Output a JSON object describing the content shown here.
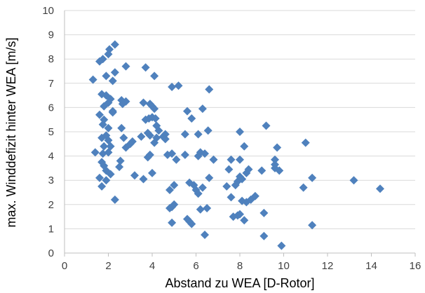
{
  "chart_data": {
    "type": "scatter",
    "title": "",
    "xlabel": "Abstand zu WEA [D-Rotor]",
    "ylabel": "max. Winddefizit hinter WEA [m/s]",
    "xlim": [
      0,
      16
    ],
    "ylim": [
      0,
      10
    ],
    "xticks": [
      "0",
      "2",
      "4",
      "6",
      "8",
      "10",
      "12",
      "14",
      "16"
    ],
    "yticks": [
      "0",
      "1",
      "2",
      "3",
      "4",
      "5",
      "6",
      "7",
      "8",
      "9",
      "10"
    ],
    "grid": "horizontal",
    "legend": "none",
    "marker": "diamond",
    "marker_color": "#4f81bd",
    "points": [
      [
        1.3,
        7.15
      ],
      [
        1.6,
        7.9
      ],
      [
        1.75,
        8.0
      ],
      [
        2.0,
        8.2
      ],
      [
        2.05,
        8.4
      ],
      [
        2.3,
        8.6
      ],
      [
        1.9,
        7.3
      ],
      [
        2.2,
        7.1
      ],
      [
        2.3,
        7.45
      ],
      [
        2.8,
        7.7
      ],
      [
        3.7,
        7.65
      ],
      [
        4.1,
        7.3
      ],
      [
        1.7,
        6.55
      ],
      [
        1.9,
        6.5
      ],
      [
        2.0,
        6.2
      ],
      [
        2.1,
        6.35
      ],
      [
        1.8,
        6.05
      ],
      [
        2.2,
        5.85
      ],
      [
        2.6,
        6.3
      ],
      [
        2.8,
        6.25
      ],
      [
        2.65,
        6.15
      ],
      [
        3.6,
        6.2
      ],
      [
        3.9,
        6.15
      ],
      [
        4.0,
        6.05
      ],
      [
        4.1,
        5.95
      ],
      [
        4.9,
        6.85
      ],
      [
        5.2,
        6.9
      ],
      [
        6.6,
        6.75
      ],
      [
        5.6,
        5.85
      ],
      [
        6.3,
        5.95
      ],
      [
        1.6,
        5.7
      ],
      [
        1.8,
        5.5
      ],
      [
        1.75,
        5.3
      ],
      [
        2.0,
        5.15
      ],
      [
        1.9,
        4.85
      ],
      [
        2.0,
        4.65
      ],
      [
        2.6,
        5.15
      ],
      [
        2.2,
        5.8
      ],
      [
        3.7,
        5.5
      ],
      [
        3.85,
        5.55
      ],
      [
        4.0,
        5.6
      ],
      [
        4.15,
        5.55
      ],
      [
        4.2,
        5.25
      ],
      [
        4.3,
        5.05
      ],
      [
        3.9,
        4.85
      ],
      [
        5.5,
        4.9
      ],
      [
        5.8,
        5.55
      ],
      [
        6.1,
        4.9
      ],
      [
        6.55,
        5.05
      ],
      [
        8.0,
        5.0
      ],
      [
        9.2,
        5.25
      ],
      [
        1.7,
        4.75
      ],
      [
        1.8,
        4.4
      ],
      [
        2.0,
        4.15
      ],
      [
        2.1,
        4.4
      ],
      [
        1.4,
        4.15
      ],
      [
        1.75,
        4.1
      ],
      [
        2.7,
        4.75
      ],
      [
        2.8,
        4.35
      ],
      [
        3.0,
        4.5
      ],
      [
        3.1,
        4.6
      ],
      [
        3.5,
        4.8
      ],
      [
        3.8,
        4.95
      ],
      [
        4.2,
        4.75
      ],
      [
        4.1,
        4.55
      ],
      [
        4.5,
        4.8
      ],
      [
        4.6,
        4.9
      ],
      [
        4.6,
        4.7
      ],
      [
        1.7,
        3.75
      ],
      [
        1.8,
        3.6
      ],
      [
        1.9,
        3.4
      ],
      [
        2.1,
        3.25
      ],
      [
        1.6,
        3.1
      ],
      [
        1.9,
        3.0
      ],
      [
        1.7,
        2.75
      ],
      [
        2.55,
        3.8
      ],
      [
        2.5,
        3.55
      ],
      [
        3.2,
        3.2
      ],
      [
        3.6,
        3.05
      ],
      [
        3.8,
        3.95
      ],
      [
        3.9,
        4.05
      ],
      [
        4.0,
        3.3
      ],
      [
        4.7,
        4.05
      ],
      [
        4.9,
        4.1
      ],
      [
        5.1,
        3.85
      ],
      [
        5.5,
        4.05
      ],
      [
        6.1,
        4.0
      ],
      [
        6.2,
        4.15
      ],
      [
        6.4,
        4.1
      ],
      [
        6.8,
        3.85
      ],
      [
        7.6,
        3.85
      ],
      [
        8.2,
        4.4
      ],
      [
        8.0,
        3.85
      ],
      [
        9.6,
        3.85
      ],
      [
        9.7,
        4.35
      ],
      [
        11.0,
        4.55
      ],
      [
        2.3,
        2.2
      ],
      [
        4.8,
        2.6
      ],
      [
        5.0,
        2.8
      ],
      [
        5.7,
        2.9
      ],
      [
        5.9,
        2.8
      ],
      [
        6.0,
        2.6
      ],
      [
        6.1,
        2.45
      ],
      [
        6.3,
        2.7
      ],
      [
        6.6,
        3.1
      ],
      [
        7.4,
        2.75
      ],
      [
        7.5,
        3.45
      ],
      [
        7.8,
        2.8
      ],
      [
        7.9,
        2.95
      ],
      [
        8.0,
        3.15
      ],
      [
        8.1,
        3.05
      ],
      [
        8.3,
        3.3
      ],
      [
        8.4,
        3.45
      ],
      [
        9.0,
        3.4
      ],
      [
        9.6,
        3.65
      ],
      [
        9.6,
        3.5
      ],
      [
        9.8,
        3.4
      ],
      [
        10.9,
        2.7
      ],
      [
        11.3,
        3.1
      ],
      [
        13.2,
        3.0
      ],
      [
        14.4,
        2.65
      ],
      [
        4.8,
        1.85
      ],
      [
        4.9,
        1.9
      ],
      [
        5.0,
        2.0
      ],
      [
        5.6,
        1.4
      ],
      [
        5.7,
        1.3
      ],
      [
        5.8,
        1.2
      ],
      [
        6.2,
        1.8
      ],
      [
        6.5,
        1.85
      ],
      [
        7.7,
        1.5
      ],
      [
        7.9,
        1.55
      ],
      [
        8.0,
        1.6
      ],
      [
        7.6,
        2.3
      ],
      [
        8.1,
        2.15
      ],
      [
        8.3,
        2.1
      ],
      [
        8.5,
        2.2
      ],
      [
        8.7,
        2.35
      ],
      [
        9.1,
        1.65
      ],
      [
        4.9,
        1.25
      ],
      [
        6.4,
        0.75
      ],
      [
        9.1,
        0.7
      ],
      [
        9.9,
        0.3
      ],
      [
        11.3,
        1.15
      ],
      [
        8.2,
        1.35
      ]
    ]
  }
}
